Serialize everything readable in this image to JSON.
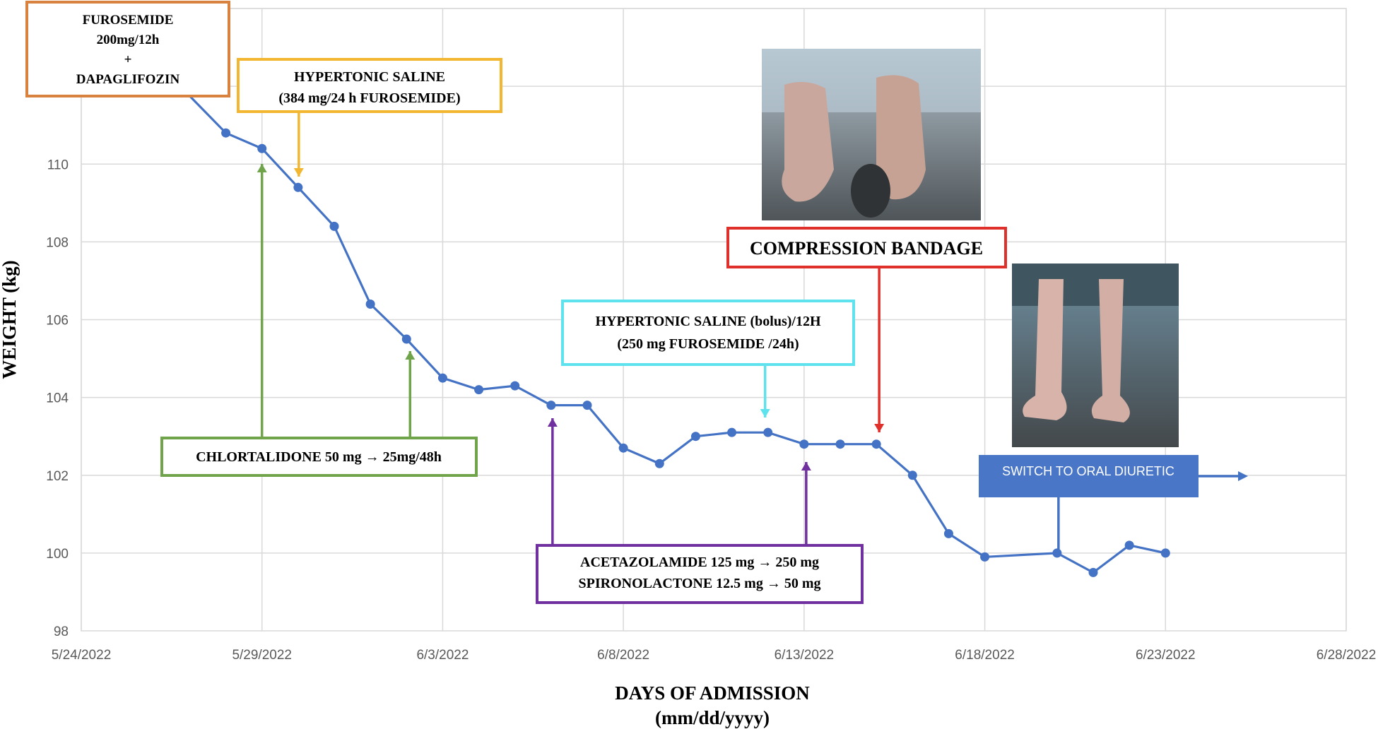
{
  "chart_data": {
    "type": "line",
    "xlabel": [
      "DAYS OF ADMISSION",
      "(mm/dd/yyyy)"
    ],
    "ylabel": "WEIGHT (kg)",
    "xlim": [
      "2022-05-24",
      "2022-06-28"
    ],
    "ylim": [
      98,
      114
    ],
    "x_tick_labels": [
      "5/24/2022",
      "5/29/2022",
      "6/3/2022",
      "6/8/2022",
      "6/13/2022",
      "6/18/2022",
      "6/23/2022",
      "6/28/2022"
    ],
    "x_tick_dates": [
      "2022-05-24",
      "2022-05-29",
      "2022-06-03",
      "2022-06-08",
      "2022-06-13",
      "2022-06-18",
      "2022-06-23",
      "2022-06-28"
    ],
    "y_ticks": [
      98,
      100,
      102,
      104,
      106,
      108,
      110
    ],
    "grid": true,
    "series": [
      {
        "color": "#4472c4",
        "x": [
          "2022-05-26",
          "2022-05-28",
          "2022-05-29",
          "2022-05-30",
          "2022-05-31",
          "2022-06-01",
          "2022-06-02",
          "2022-06-03",
          "2022-06-04",
          "2022-06-05",
          "2022-06-06",
          "2022-06-07",
          "2022-06-08",
          "2022-06-09",
          "2022-06-10",
          "2022-06-11",
          "2022-06-12",
          "2022-06-13",
          "2022-06-14",
          "2022-06-15",
          "2022-06-16",
          "2022-06-17",
          "2022-06-18",
          "2022-06-20",
          "2022-06-21",
          "2022-06-22",
          "2022-06-23"
        ],
        "y": [
          112.7,
          110.8,
          110.4,
          109.4,
          108.4,
          106.4,
          105.5,
          104.5,
          104.2,
          104.3,
          103.8,
          103.8,
          102.7,
          102.3,
          103.0,
          103.1,
          103.1,
          102.8,
          102.8,
          102.8,
          102.0,
          100.5,
          99.9,
          100.0,
          99.5,
          100.2,
          100.0
        ]
      }
    ],
    "annotations": [
      {
        "lines": [
          "FUROSEMIDE",
          "200mg/12h",
          "+",
          "DAPAGLIFOZIN"
        ],
        "color": "#d9813e"
      },
      {
        "lines": [
          "HYPERTONIC SALINE",
          "(384 mg/24 h FUROSEMIDE)"
        ],
        "color": "#f2b630",
        "arrow_date": "2022-05-30",
        "arrow_direction": "down"
      },
      {
        "lines": [
          "CHLORTALIDONE 50 mg → 25mg/48h"
        ],
        "color": "#70a44a",
        "arrow_dates": [
          "2022-05-29",
          "2022-06-02"
        ],
        "arrow_direction": "up"
      },
      {
        "lines": [
          "HYPERTONIC SALINE (bolus)/12H",
          "(250 mg FUROSEMIDE /24h)"
        ],
        "color": "#5ee3ee",
        "arrow_date": "2022-06-12",
        "arrow_direction": "down"
      },
      {
        "lines": [
          "COMPRESSION BANDAGE"
        ],
        "color": "#e0302b",
        "arrow_date": "2022-06-15",
        "arrow_direction": "down"
      },
      {
        "lines": [
          "ACETAZOLAMIDE 125 mg → 250 mg",
          "SPIRONOLACTONE 12.5 mg → 50 mg"
        ],
        "color": "#7030a0",
        "arrow_dates": [
          "2022-06-06",
          "2022-06-13"
        ],
        "arrow_direction": "up"
      },
      {
        "lines": [
          "SWITCH TO ORAL DIURETIC"
        ],
        "color": "#4472c4",
        "anchor_date": "2022-06-20",
        "arrow_date": "2022-06-25",
        "arrow_direction": "right"
      }
    ],
    "photos": [
      {
        "label": "photo-feet-before"
      },
      {
        "label": "photo-legs-after"
      }
    ]
  }
}
